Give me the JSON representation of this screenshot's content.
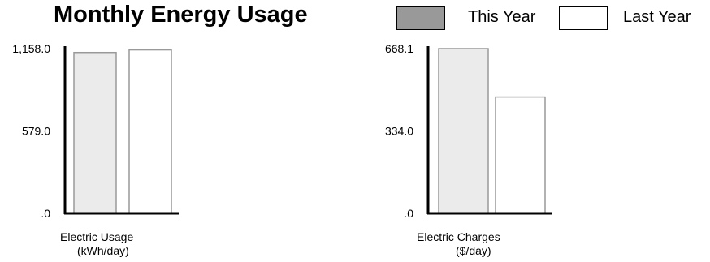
{
  "title": "Monthly Energy Usage",
  "legend": [
    {
      "label": "This Year",
      "color": "#999999"
    },
    {
      "label": "Last Year",
      "color": "#ffffff"
    }
  ],
  "chart_data": [
    {
      "type": "bar",
      "xlabel": "Electric Usage",
      "unit_label": "(kWh/day)",
      "ylim": [
        0,
        1158.0
      ],
      "yticks": [
        ".0",
        "579.0",
        "1,158.0"
      ],
      "bar_fill": [
        "#ebebeb",
        "#ffffff"
      ],
      "series": [
        {
          "name": "This Year",
          "values": [
            1131
          ]
        },
        {
          "name": "Last Year",
          "values": [
            1149
          ]
        }
      ]
    },
    {
      "type": "bar",
      "xlabel": "Electric Charges",
      "unit_label": "($/day)",
      "ylim": [
        0,
        668.1
      ],
      "yticks": [
        ".0",
        "334.0",
        "668.1"
      ],
      "bar_fill": [
        "#ebebeb",
        "#ffffff"
      ],
      "series": [
        {
          "name": "This Year",
          "values": [
            668.1
          ]
        },
        {
          "name": "Last Year",
          "values": [
            472
          ]
        }
      ]
    }
  ]
}
